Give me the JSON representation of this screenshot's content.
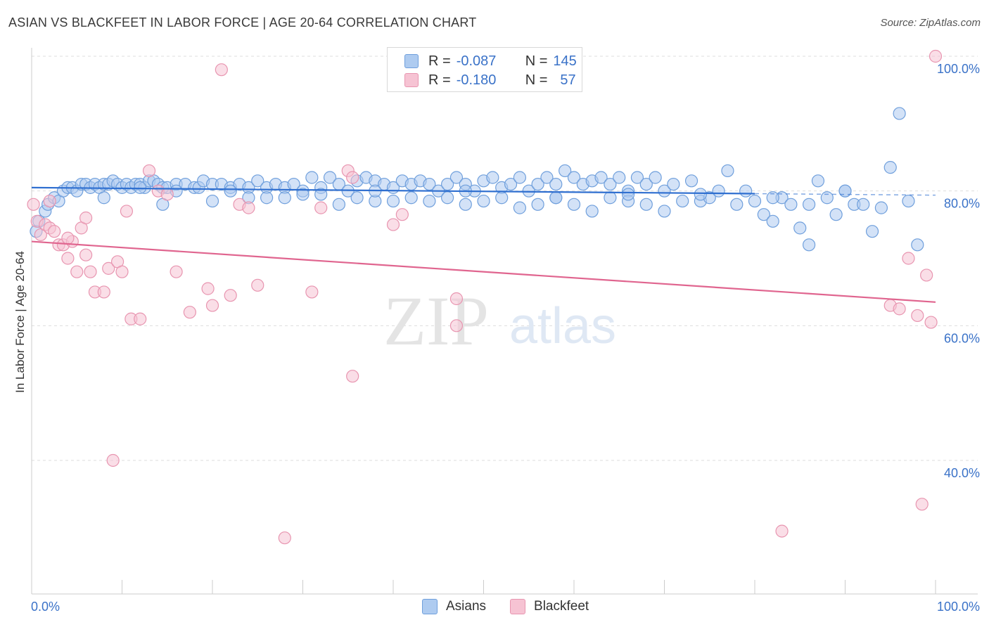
{
  "title": "ASIAN VS BLACKFEET IN LABOR FORCE | AGE 20-64 CORRELATION CHART",
  "source": "Source: ZipAtlas.com",
  "colors": {
    "asians_fill": "#aecbf0",
    "asians_stroke": "#6f9fdc",
    "asians_line": "#2f6fd0",
    "blackfeet_fill": "#f6c3d3",
    "blackfeet_stroke": "#e895b0",
    "blackfeet_line": "#e0658f",
    "axis_label": "#3a72c8",
    "grid": "#dddddd"
  },
  "legend": {
    "rows": [
      {
        "r_label": "R =",
        "r_value": "-0.087",
        "n_label": "N =",
        "n_value": "145"
      },
      {
        "r_label": "R =",
        "r_value": "-0.180",
        "n_label": "N =",
        "n_value": "57"
      }
    ]
  },
  "bottom_legend": [
    "Asians",
    "Blackfeet"
  ],
  "watermark": {
    "zip": "ZIP",
    "atlas": "atlas"
  },
  "chart_data": {
    "type": "scatter",
    "title": "ASIAN VS BLACKFEET IN LABOR FORCE | AGE 20-64 CORRELATION CHART",
    "xlabel": "",
    "ylabel": "In Labor Force | Age 20-64",
    "xlim": [
      0,
      100
    ],
    "ylim": [
      20,
      102
    ],
    "x_tick_labels": [
      "0.0%",
      "100.0%"
    ],
    "y_ticks": [
      40,
      60,
      80,
      100
    ],
    "y_tick_labels": [
      "40.0%",
      "60.0%",
      "80.0%",
      "100.0%"
    ],
    "grid": true,
    "series": [
      {
        "name": "Asians",
        "trendline": {
          "x": [
            0,
            80
          ],
          "y": [
            80.5,
            79.6
          ],
          "dashed_extension_to": 100
        },
        "points": [
          [
            0.5,
            74
          ],
          [
            0.8,
            75.5
          ],
          [
            1.5,
            77
          ],
          [
            1.8,
            78
          ],
          [
            2.5,
            79
          ],
          [
            3,
            78.5
          ],
          [
            3.5,
            80
          ],
          [
            4,
            80.5
          ],
          [
            4.5,
            80.5
          ],
          [
            5,
            80
          ],
          [
            5.5,
            81
          ],
          [
            6,
            81
          ],
          [
            6.5,
            80.5
          ],
          [
            7,
            81
          ],
          [
            7.5,
            80.5
          ],
          [
            8,
            81
          ],
          [
            8.5,
            81
          ],
          [
            9,
            81.5
          ],
          [
            9.5,
            81
          ],
          [
            10,
            80.5
          ],
          [
            10.5,
            81
          ],
          [
            11,
            80.5
          ],
          [
            11.5,
            81
          ],
          [
            12,
            81
          ],
          [
            12.5,
            80.5
          ],
          [
            13,
            81.5
          ],
          [
            13.5,
            81.5
          ],
          [
            14,
            81
          ],
          [
            14.5,
            80.5
          ],
          [
            15,
            80.5
          ],
          [
            16,
            81
          ],
          [
            17,
            81
          ],
          [
            18,
            80.5
          ],
          [
            18.5,
            80.5
          ],
          [
            19,
            81.5
          ],
          [
            20,
            81
          ],
          [
            21,
            81
          ],
          [
            22,
            80.5
          ],
          [
            23,
            81
          ],
          [
            24,
            80.5
          ],
          [
            25,
            81.5
          ],
          [
            26,
            80.5
          ],
          [
            27,
            81
          ],
          [
            28,
            80.5
          ],
          [
            29,
            81
          ],
          [
            30,
            80
          ],
          [
            31,
            82
          ],
          [
            32,
            80.5
          ],
          [
            33,
            82
          ],
          [
            34,
            81
          ],
          [
            35,
            80
          ],
          [
            36,
            81.5
          ],
          [
            37,
            82
          ],
          [
            38,
            81.5
          ],
          [
            39,
            81
          ],
          [
            40,
            80.5
          ],
          [
            41,
            81.5
          ],
          [
            42,
            81
          ],
          [
            43,
            81.5
          ],
          [
            44,
            81
          ],
          [
            45,
            80
          ],
          [
            46,
            81
          ],
          [
            47,
            82
          ],
          [
            48,
            81
          ],
          [
            49,
            80
          ],
          [
            50,
            81.5
          ],
          [
            51,
            82
          ],
          [
            52,
            80.5
          ],
          [
            53,
            81
          ],
          [
            54,
            82
          ],
          [
            55,
            80
          ],
          [
            56,
            81
          ],
          [
            57,
            82
          ],
          [
            58,
            81
          ],
          [
            59,
            83
          ],
          [
            60,
            82
          ],
          [
            61,
            81
          ],
          [
            62,
            81.5
          ],
          [
            63,
            82
          ],
          [
            64,
            81
          ],
          [
            65,
            82
          ],
          [
            66,
            80
          ],
          [
            67,
            82
          ],
          [
            68,
            81
          ],
          [
            69,
            82
          ],
          [
            70,
            80
          ],
          [
            71,
            81
          ],
          [
            72,
            78.5
          ],
          [
            73,
            81.5
          ],
          [
            74,
            78.5
          ],
          [
            75,
            79
          ],
          [
            76,
            80
          ],
          [
            77,
            83
          ],
          [
            78,
            78
          ],
          [
            79,
            80
          ],
          [
            80,
            78.5
          ],
          [
            81,
            76.5
          ],
          [
            82,
            75.5
          ],
          [
            83,
            79
          ],
          [
            84,
            78
          ],
          [
            85,
            74.5
          ],
          [
            86,
            72
          ],
          [
            87,
            81.5
          ],
          [
            88,
            79
          ],
          [
            89,
            76.5
          ],
          [
            90,
            80
          ],
          [
            91,
            78
          ],
          [
            92,
            78
          ],
          [
            93,
            74
          ],
          [
            94,
            77.5
          ],
          [
            95,
            83.5
          ],
          [
            96,
            91.5
          ],
          [
            97,
            78.5
          ],
          [
            98,
            72
          ],
          [
            14.5,
            78
          ],
          [
            20,
            78.5
          ],
          [
            24,
            79
          ],
          [
            28,
            79
          ],
          [
            32,
            79.5
          ],
          [
            34,
            78
          ],
          [
            36,
            79
          ],
          [
            38,
            78.5
          ],
          [
            40,
            78.5
          ],
          [
            42,
            79
          ],
          [
            44,
            78.5
          ],
          [
            46,
            79
          ],
          [
            48,
            78
          ],
          [
            50,
            78.5
          ],
          [
            52,
            79
          ],
          [
            54,
            77.5
          ],
          [
            56,
            78
          ],
          [
            58,
            79
          ],
          [
            60,
            78
          ],
          [
            62,
            77
          ],
          [
            64,
            79
          ],
          [
            66,
            78.5
          ],
          [
            68,
            78
          ],
          [
            70,
            77
          ],
          [
            8,
            79
          ],
          [
            12,
            80.5
          ],
          [
            16,
            80
          ],
          [
            22,
            80
          ],
          [
            26,
            79
          ],
          [
            30,
            79.5
          ],
          [
            38,
            80
          ],
          [
            48,
            80
          ],
          [
            58,
            79
          ],
          [
            66,
            79.5
          ],
          [
            74,
            79.5
          ],
          [
            82,
            79
          ],
          [
            86,
            78
          ],
          [
            90,
            80
          ]
        ]
      },
      {
        "name": "Blackfeet",
        "trendline": {
          "x": [
            0,
            100
          ],
          "y": [
            72.5,
            63.5
          ]
        },
        "points": [
          [
            0.2,
            78
          ],
          [
            0.6,
            75.5
          ],
          [
            1,
            73.5
          ],
          [
            1.5,
            75
          ],
          [
            2,
            74.5
          ],
          [
            2.5,
            74
          ],
          [
            3,
            72
          ],
          [
            3.5,
            72
          ],
          [
            4,
            70
          ],
          [
            4.5,
            72.5
          ],
          [
            5,
            68
          ],
          [
            5.5,
            74.5
          ],
          [
            6,
            70.5
          ],
          [
            6.5,
            68
          ],
          [
            7,
            65
          ],
          [
            8,
            65
          ],
          [
            8.5,
            68.5
          ],
          [
            9.5,
            69.5
          ],
          [
            10.5,
            77
          ],
          [
            11,
            61
          ],
          [
            12,
            61
          ],
          [
            13,
            83
          ],
          [
            14,
            80
          ],
          [
            15,
            79.5
          ],
          [
            16,
            68
          ],
          [
            17.5,
            62
          ],
          [
            19.5,
            65.5
          ],
          [
            21,
            98
          ],
          [
            22,
            64.5
          ],
          [
            23,
            78
          ],
          [
            24,
            77.5
          ],
          [
            25,
            66
          ],
          [
            28,
            28.5
          ],
          [
            31,
            65
          ],
          [
            32,
            77.5
          ],
          [
            35,
            83
          ],
          [
            35.5,
            82
          ],
          [
            35.5,
            52.5
          ],
          [
            40,
            75
          ],
          [
            41,
            76.5
          ],
          [
            47,
            64
          ],
          [
            47,
            60
          ],
          [
            9,
            40
          ],
          [
            83,
            29.5
          ],
          [
            95,
            63
          ],
          [
            96,
            62.5
          ],
          [
            97,
            70
          ],
          [
            98,
            61.5
          ],
          [
            98.5,
            33.5
          ],
          [
            99,
            67.5
          ],
          [
            99.5,
            60.5
          ],
          [
            100,
            100
          ],
          [
            2,
            78.5
          ],
          [
            4,
            73
          ],
          [
            6,
            76
          ],
          [
            10,
            68
          ],
          [
            20,
            63
          ]
        ]
      }
    ]
  }
}
